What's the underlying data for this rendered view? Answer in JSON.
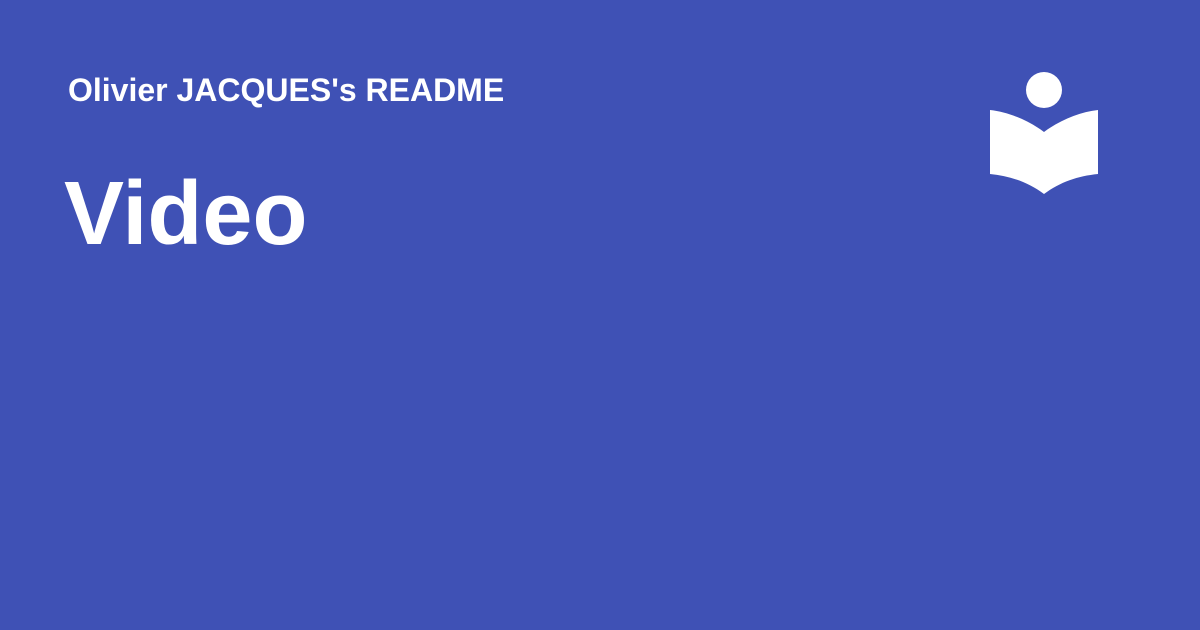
{
  "site": {
    "name": "Olivier JACQUES's README"
  },
  "page": {
    "title": "Video"
  },
  "logo": {
    "icon": "book-reader-icon",
    "color": "#ffffff"
  },
  "theme": {
    "background": "#3f51b5",
    "foreground": "#ffffff"
  }
}
